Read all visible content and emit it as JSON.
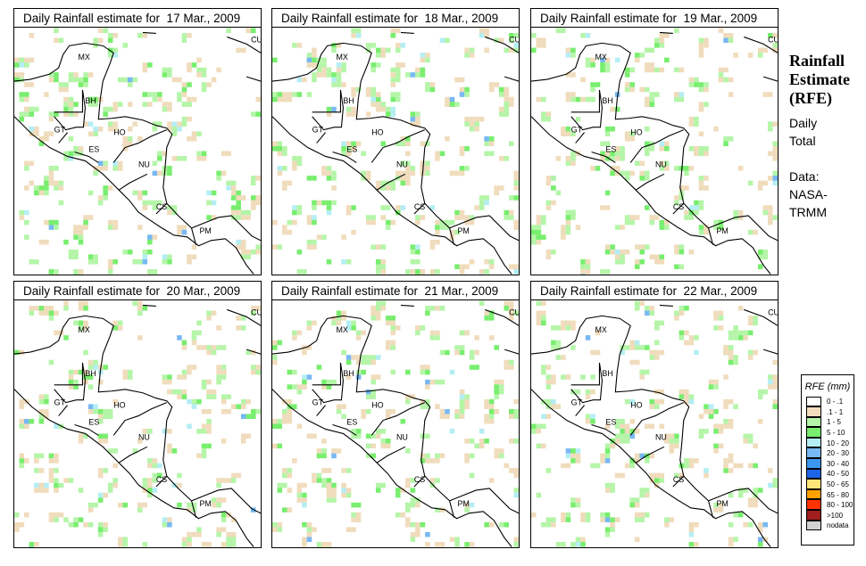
{
  "panels": [
    {
      "title": "Daily Rainfall estimate for  17 Mar., 2009",
      "seed": 17
    },
    {
      "title": "Daily Rainfall estimate for  18 Mar., 2009",
      "seed": 18
    },
    {
      "title": "Daily Rainfall estimate for  19 Mar., 2009",
      "seed": 19
    },
    {
      "title": "Daily Rainfall estimate for  20 Mar., 2009",
      "seed": 20
    },
    {
      "title": "Daily Rainfall estimate for  21 Mar., 2009",
      "seed": 21
    },
    {
      "title": "Daily Rainfall estimate for  22 Mar., 2009",
      "seed": 22
    }
  ],
  "countries": [
    "MX",
    "BH",
    "GT",
    "HO",
    "ES",
    "NU",
    "CS",
    "PM",
    "CU"
  ],
  "side": {
    "title1": "Rainfall",
    "title2": "Estimate",
    "title3": "(RFE)",
    "daily1": "Daily",
    "daily2": "Total",
    "data1": "Data:",
    "data2": "NASA-",
    "data3": "TRMM"
  },
  "legend": {
    "title": "RFE (mm)",
    "items": [
      {
        "label": "0 - .1",
        "color": "#ffffff"
      },
      {
        "label": ".1 - 1",
        "color": "#f0dcbc"
      },
      {
        "label": "1 - 5",
        "color": "#b4f5a8"
      },
      {
        "label": "5 - 10",
        "color": "#78ee6e"
      },
      {
        "label": "10 - 20",
        "color": "#b4eef4"
      },
      {
        "label": "20 - 30",
        "color": "#78b8f4"
      },
      {
        "label": "30 - 40",
        "color": "#3c96f0"
      },
      {
        "label": "40 - 50",
        "color": "#1e64e6"
      },
      {
        "label": "50 - 65",
        "color": "#ffe678"
      },
      {
        "label": "65 - 80",
        "color": "#ffa000"
      },
      {
        "label": "80 - 100",
        "color": "#ff3200"
      },
      {
        "label": ">100",
        "color": "#a01e1e"
      },
      {
        "label": "nodata",
        "color": "#d2d2d2"
      }
    ]
  }
}
